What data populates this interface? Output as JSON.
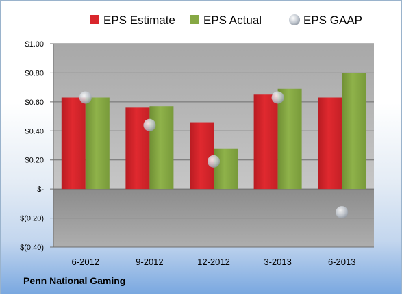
{
  "company_name": "Penn National Gaming",
  "chart_data": {
    "type": "bar",
    "categories": [
      "6-2012",
      "9-2012",
      "12-2012",
      "3-2013",
      "6-2013"
    ],
    "series": [
      {
        "name": "EPS Estimate",
        "kind": "bar",
        "color": "#d9262c",
        "values": [
          0.63,
          0.56,
          0.46,
          0.65,
          0.63
        ]
      },
      {
        "name": "EPS Actual",
        "kind": "bar",
        "color": "#86a844",
        "values": [
          0.63,
          0.57,
          0.28,
          0.69,
          0.8
        ]
      },
      {
        "name": "EPS GAAP",
        "kind": "point",
        "color": "#bfc6cf",
        "values": [
          0.63,
          0.44,
          0.19,
          0.63,
          -0.16
        ]
      }
    ],
    "y_ticks": [
      1.0,
      0.8,
      0.6,
      0.4,
      0.2,
      0,
      -0.2,
      -0.4
    ],
    "y_tick_labels": [
      "$1.00",
      "$0.80",
      "$0.60",
      "$0.40",
      "$0.20",
      "$-",
      "$(0.20)",
      "$(0.40)"
    ],
    "ylim": [
      -0.4,
      1.0
    ],
    "grid": true,
    "legend_position": "top"
  }
}
